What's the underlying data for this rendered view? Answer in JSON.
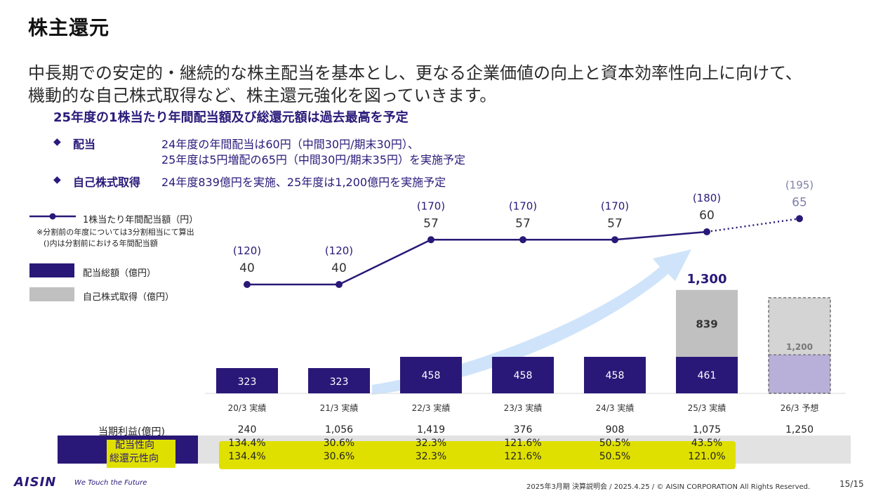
{
  "title": "株主還元",
  "lead": {
    "line1": "中長期での安定的・継続的な株主配当を基本とし、更なる企業価値の向上と資本効率性向上に向けて、",
    "line2": "機動的な自己株式取得など、株主還元強化を図っていきます。"
  },
  "headline": "25年度の1株当たり年間配当額及び総還元額は過去最高を予定",
  "bullets": [
    {
      "mark": "◆",
      "label": "配当",
      "lines": [
        "24年度の年間配当は60円（中間30円/期末30円）、",
        "25年度は5円増配の65円（中間30円/期末35円）を実施予定"
      ]
    },
    {
      "mark": "◆",
      "label": "自己株式取得",
      "lines": [
        "24年度839億円を実施、25年度は1,200億円を実施予定"
      ]
    }
  ],
  "legend": {
    "line_label": "1株当たり年間配当額（円）",
    "note1": "※分割前の年度については3分割相当にて算出",
    "note2": "()内は分割前における年間配当額",
    "div_label": "配当総額（億円）",
    "buyback_label": "自己株式取得（億円）"
  },
  "colors": {
    "navy": "#2a1878",
    "gray": "#c0c0c0",
    "lavender": "#b8b0d8",
    "forecast_text": "#8080a8",
    "arrow": "#cfe4fa",
    "highlight": "#e0e000"
  },
  "chart_data": {
    "type": "bar+line",
    "categories": [
      "20/3 実績",
      "21/3 実績",
      "22/3 実績",
      "23/3 実績",
      "24/3 実績",
      "25/3 実績",
      "26/3 予想"
    ],
    "series": [
      {
        "name": "配当総額（億円）",
        "values": [
          323,
          323,
          458,
          458,
          458,
          461,
          null
        ]
      },
      {
        "name": "自己株式取得（億円）",
        "values": [
          null,
          null,
          null,
          null,
          null,
          839,
          1200
        ]
      },
      {
        "name": "1株当たり年間配当額（円）",
        "values": [
          40,
          40,
          57,
          57,
          57,
          60,
          65
        ]
      }
    ],
    "pre_split_dividend_labels": [
      "(120)",
      "(120)",
      "(170)",
      "(170)",
      "(170)",
      "(180)",
      "(195)"
    ],
    "dividend_labels": [
      "40",
      "40",
      "57",
      "57",
      "57",
      "60",
      "65"
    ],
    "bar_labels": [
      "323",
      "323",
      "458",
      "458",
      "458",
      "461",
      ""
    ],
    "buyback_labels": [
      "",
      "",
      "",
      "",
      "",
      "839",
      "1,200"
    ],
    "total_label": "1,300",
    "forecast_index": 6
  },
  "table": {
    "rows": [
      {
        "label": "当期利益(億円)",
        "values": [
          "240",
          "1,056",
          "1,419",
          "376",
          "908",
          "1,075",
          "1,250"
        ]
      },
      {
        "label": "配当性向",
        "values": [
          "134.4%",
          "30.6%",
          "32.3%",
          "121.6%",
          "50.5%",
          "43.5%",
          ""
        ]
      },
      {
        "label": "総還元性向",
        "values": [
          "134.4%",
          "30.6%",
          "32.3%",
          "121.6%",
          "50.5%",
          "121.0%",
          ""
        ]
      }
    ]
  },
  "footer": {
    "logo": "AISIN",
    "tagline": "We Touch the Future",
    "event": "2025年3月期 決算説明会 / 2025.4.25 / © AISIN CORPORATION All Rights Reserved.",
    "page": "15/15"
  }
}
